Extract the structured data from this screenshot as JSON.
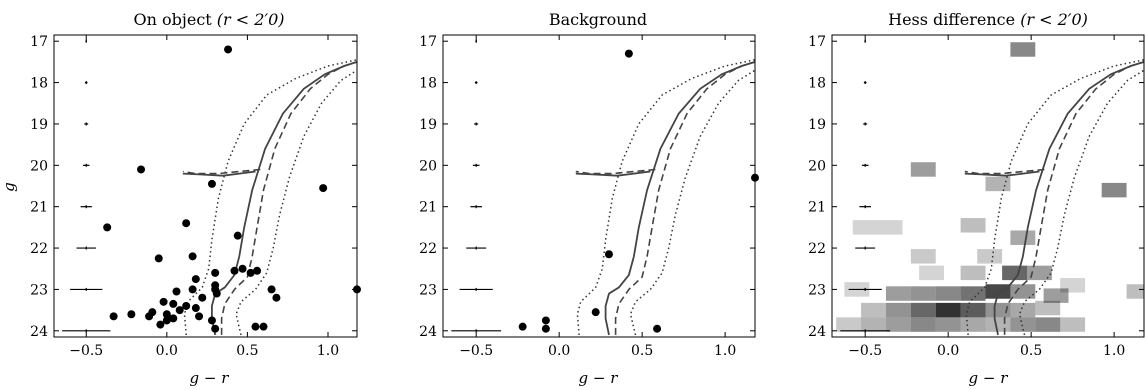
{
  "chart_data": [
    {
      "type": "scatter",
      "panel": "on-object",
      "title_main": "On object",
      "title_math": "(r < 2′0)",
      "xlabel": "g − r",
      "ylabel": "g",
      "xlim": [
        -0.7,
        1.18
      ],
      "ylim": [
        24.15,
        16.85
      ],
      "xticks": [
        -0.5,
        0.0,
        0.5,
        1.0
      ],
      "xtick_labels": [
        "−0.5",
        "0.0",
        "0.5",
        "1.0"
      ],
      "yticks": [
        17,
        18,
        19,
        20,
        21,
        22,
        23,
        24
      ],
      "ytick_labels": [
        "17",
        "18",
        "19",
        "20",
        "21",
        "22",
        "23",
        "24"
      ],
      "points": [
        [
          0.38,
          17.2
        ],
        [
          -0.16,
          20.1
        ],
        [
          0.28,
          20.45
        ],
        [
          0.97,
          20.55
        ],
        [
          -0.37,
          21.5
        ],
        [
          0.12,
          21.4
        ],
        [
          0.44,
          21.7
        ],
        [
          -0.05,
          22.25
        ],
        [
          0.16,
          22.2
        ],
        [
          0.47,
          22.5
        ],
        [
          0.42,
          22.55
        ],
        [
          0.3,
          22.6
        ],
        [
          0.18,
          22.75
        ],
        [
          0.52,
          22.6
        ],
        [
          0.56,
          22.55
        ],
        [
          0.3,
          23.0
        ],
        [
          0.06,
          23.05
        ],
        [
          0.16,
          23.0
        ],
        [
          0.31,
          23.1
        ],
        [
          0.65,
          23.0
        ],
        [
          1.18,
          23.0
        ],
        [
          0.68,
          23.2
        ],
        [
          0.22,
          23.2
        ],
        [
          0.3,
          22.9
        ],
        [
          -0.02,
          23.3
        ],
        [
          0.04,
          23.35
        ],
        [
          0.12,
          23.4
        ],
        [
          0.18,
          23.45
        ],
        [
          0.08,
          23.5
        ],
        [
          -0.09,
          23.55
        ],
        [
          0.0,
          23.6
        ],
        [
          -0.22,
          23.6
        ],
        [
          -0.33,
          23.65
        ],
        [
          -0.11,
          23.65
        ],
        [
          0.04,
          23.7
        ],
        [
          0.2,
          23.65
        ],
        [
          0.28,
          23.75
        ],
        [
          -0.04,
          23.85
        ],
        [
          0.55,
          23.9
        ],
        [
          0.6,
          23.9
        ],
        [
          0.3,
          23.95
        ],
        [
          0.0,
          23.75
        ]
      ],
      "error_bars": [
        {
          "mag": 17,
          "xerr": 0.005
        },
        {
          "mag": 18,
          "xerr": 0.008
        },
        {
          "mag": 19,
          "xerr": 0.012
        },
        {
          "mag": 20,
          "xerr": 0.02
        },
        {
          "mag": 21,
          "xerr": 0.035
        },
        {
          "mag": 22,
          "xerr": 0.06
        },
        {
          "mag": 23,
          "xerr": 0.1
        },
        {
          "mag": 24,
          "xerr": 0.15
        }
      ]
    },
    {
      "type": "scatter",
      "panel": "background",
      "title_main": "Background",
      "title_math": "",
      "xlabel": "g − r",
      "ylabel": "",
      "xlim": [
        -0.7,
        1.18
      ],
      "ylim": [
        24.15,
        16.85
      ],
      "xticks": [
        -0.5,
        0.0,
        0.5,
        1.0
      ],
      "xtick_labels": [
        "−0.5",
        "0.0",
        "0.5",
        "1.0"
      ],
      "yticks": [
        17,
        18,
        19,
        20,
        21,
        22,
        23,
        24
      ],
      "ytick_labels": [
        "17",
        "18",
        "19",
        "20",
        "21",
        "22",
        "23",
        "24"
      ],
      "points": [
        [
          0.42,
          17.3
        ],
        [
          1.18,
          20.3
        ],
        [
          0.3,
          22.15
        ],
        [
          0.22,
          23.55
        ],
        [
          -0.22,
          23.9
        ],
        [
          -0.08,
          23.75
        ],
        [
          -0.08,
          23.95
        ],
        [
          0.59,
          23.95
        ]
      ],
      "error_bars": [
        {
          "mag": 17,
          "xerr": 0.005
        },
        {
          "mag": 18,
          "xerr": 0.008
        },
        {
          "mag": 19,
          "xerr": 0.012
        },
        {
          "mag": 20,
          "xerr": 0.02
        },
        {
          "mag": 21,
          "xerr": 0.035
        },
        {
          "mag": 22,
          "xerr": 0.06
        },
        {
          "mag": 23,
          "xerr": 0.1
        },
        {
          "mag": 24,
          "xerr": 0.15
        }
      ]
    },
    {
      "type": "heatmap",
      "panel": "hess-difference",
      "title_main": "Hess difference",
      "title_math": "(r < 2′0)",
      "xlabel": "g − r",
      "ylabel": "",
      "xlim": [
        -0.7,
        1.18
      ],
      "ylim": [
        24.15,
        16.85
      ],
      "xticks": [
        -0.5,
        0.0,
        0.5,
        1.0
      ],
      "xtick_labels": [
        "−0.5",
        "0.0",
        "0.5",
        "1.0"
      ],
      "yticks": [
        17,
        18,
        19,
        20,
        21,
        22,
        23,
        24
      ],
      "ytick_labels": [
        "17",
        "18",
        "19",
        "20",
        "21",
        "22",
        "23",
        "24"
      ],
      "cells": [
        [
          0.45,
          17.2,
          0.55
        ],
        [
          -0.15,
          20.1,
          0.45
        ],
        [
          0.3,
          20.45,
          0.35
        ],
        [
          1.0,
          20.6,
          0.55
        ],
        [
          -0.5,
          21.5,
          0.2
        ],
        [
          -0.35,
          21.5,
          0.2
        ],
        [
          0.15,
          21.45,
          0.3
        ],
        [
          0.45,
          21.75,
          0.4
        ],
        [
          -0.15,
          22.2,
          0.25
        ],
        [
          0.25,
          22.2,
          0.25
        ],
        [
          0.4,
          22.6,
          0.7
        ],
        [
          0.55,
          22.6,
          0.45
        ],
        [
          0.15,
          22.6,
          0.3
        ],
        [
          -0.1,
          22.6,
          0.2
        ],
        [
          0.75,
          22.9,
          0.2
        ],
        [
          -0.55,
          23.0,
          0.2
        ],
        [
          -0.3,
          23.1,
          0.45
        ],
        [
          -0.15,
          23.1,
          0.5
        ],
        [
          0.0,
          23.1,
          0.55
        ],
        [
          0.15,
          23.1,
          0.65
        ],
        [
          0.3,
          23.05,
          0.85
        ],
        [
          0.45,
          23.05,
          0.5
        ],
        [
          0.65,
          23.15,
          0.45
        ],
        [
          1.15,
          23.05,
          0.3
        ],
        [
          -0.45,
          23.5,
          0.3
        ],
        [
          -0.3,
          23.5,
          0.5
        ],
        [
          -0.15,
          23.5,
          0.7
        ],
        [
          0.0,
          23.5,
          0.95
        ],
        [
          0.15,
          23.5,
          0.75
        ],
        [
          0.3,
          23.5,
          0.5
        ],
        [
          0.45,
          23.5,
          0.4
        ],
        [
          0.6,
          23.45,
          0.3
        ],
        [
          -0.6,
          23.85,
          0.25
        ],
        [
          -0.45,
          23.85,
          0.35
        ],
        [
          -0.3,
          23.85,
          0.45
        ],
        [
          -0.15,
          23.85,
          0.55
        ],
        [
          0.0,
          23.85,
          0.5
        ],
        [
          0.15,
          23.85,
          0.4
        ],
        [
          0.3,
          23.85,
          0.35
        ],
        [
          0.45,
          23.85,
          0.5
        ],
        [
          0.6,
          23.85,
          0.55
        ],
        [
          0.75,
          23.85,
          0.3
        ]
      ],
      "error_bars": [
        {
          "mag": 17,
          "xerr": 0.005
        },
        {
          "mag": 18,
          "xerr": 0.008
        },
        {
          "mag": 19,
          "xerr": 0.012
        },
        {
          "mag": 20,
          "xerr": 0.02
        },
        {
          "mag": 21,
          "xerr": 0.035
        },
        {
          "mag": 22,
          "xerr": 0.06
        },
        {
          "mag": 23,
          "xerr": 0.1
        },
        {
          "mag": 24,
          "xerr": 0.15
        }
      ]
    }
  ],
  "isochrone": {
    "main": [
      [
        0.3,
        24.1
      ],
      [
        0.28,
        23.7
      ],
      [
        0.28,
        23.4
      ],
      [
        0.3,
        23.1
      ],
      [
        0.36,
        22.95
      ],
      [
        0.42,
        22.65
      ],
      [
        0.45,
        22.2
      ],
      [
        0.48,
        21.5
      ],
      [
        0.53,
        20.6
      ],
      [
        0.61,
        19.6
      ],
      [
        0.72,
        18.75
      ],
      [
        0.85,
        18.15
      ],
      [
        0.98,
        17.8
      ],
      [
        1.1,
        17.6
      ],
      [
        1.18,
        17.5
      ]
    ],
    "dashed": [
      [
        0.34,
        24.1
      ],
      [
        0.34,
        23.7
      ],
      [
        0.36,
        23.35
      ],
      [
        0.42,
        23.0
      ],
      [
        0.5,
        22.7
      ],
      [
        0.53,
        22.2
      ],
      [
        0.56,
        21.5
      ],
      [
        0.6,
        20.6
      ],
      [
        0.67,
        19.6
      ],
      [
        0.77,
        18.75
      ],
      [
        0.89,
        18.15
      ],
      [
        1.0,
        17.8
      ],
      [
        1.1,
        17.6
      ],
      [
        1.18,
        17.5
      ]
    ],
    "dotted_left": [
      [
        0.12,
        24.1
      ],
      [
        0.11,
        23.6
      ],
      [
        0.13,
        23.3
      ],
      [
        0.22,
        22.95
      ],
      [
        0.26,
        22.5
      ],
      [
        0.28,
        21.8
      ],
      [
        0.32,
        20.8
      ],
      [
        0.38,
        19.9
      ],
      [
        0.48,
        19.0
      ],
      [
        0.62,
        18.3
      ],
      [
        0.8,
        17.9
      ],
      [
        1.0,
        17.6
      ],
      [
        1.18,
        17.45
      ]
    ],
    "dotted_right": [
      [
        0.46,
        24.1
      ],
      [
        0.43,
        23.6
      ],
      [
        0.46,
        23.3
      ],
      [
        0.55,
        23.0
      ],
      [
        0.62,
        22.6
      ],
      [
        0.66,
        22.0
      ],
      [
        0.7,
        21.2
      ],
      [
        0.76,
        20.3
      ],
      [
        0.85,
        19.3
      ],
      [
        0.96,
        18.5
      ],
      [
        1.08,
        17.95
      ],
      [
        1.18,
        17.7
      ]
    ],
    "hb_solid": [
      [
        0.55,
        20.15
      ],
      [
        0.45,
        20.2
      ],
      [
        0.35,
        20.25
      ],
      [
        0.2,
        20.22
      ],
      [
        0.1,
        20.2
      ]
    ],
    "hb_dashed": [
      [
        0.58,
        20.1
      ],
      [
        0.45,
        20.15
      ],
      [
        0.32,
        20.2
      ],
      [
        0.18,
        20.2
      ],
      [
        0.1,
        20.15
      ]
    ]
  }
}
